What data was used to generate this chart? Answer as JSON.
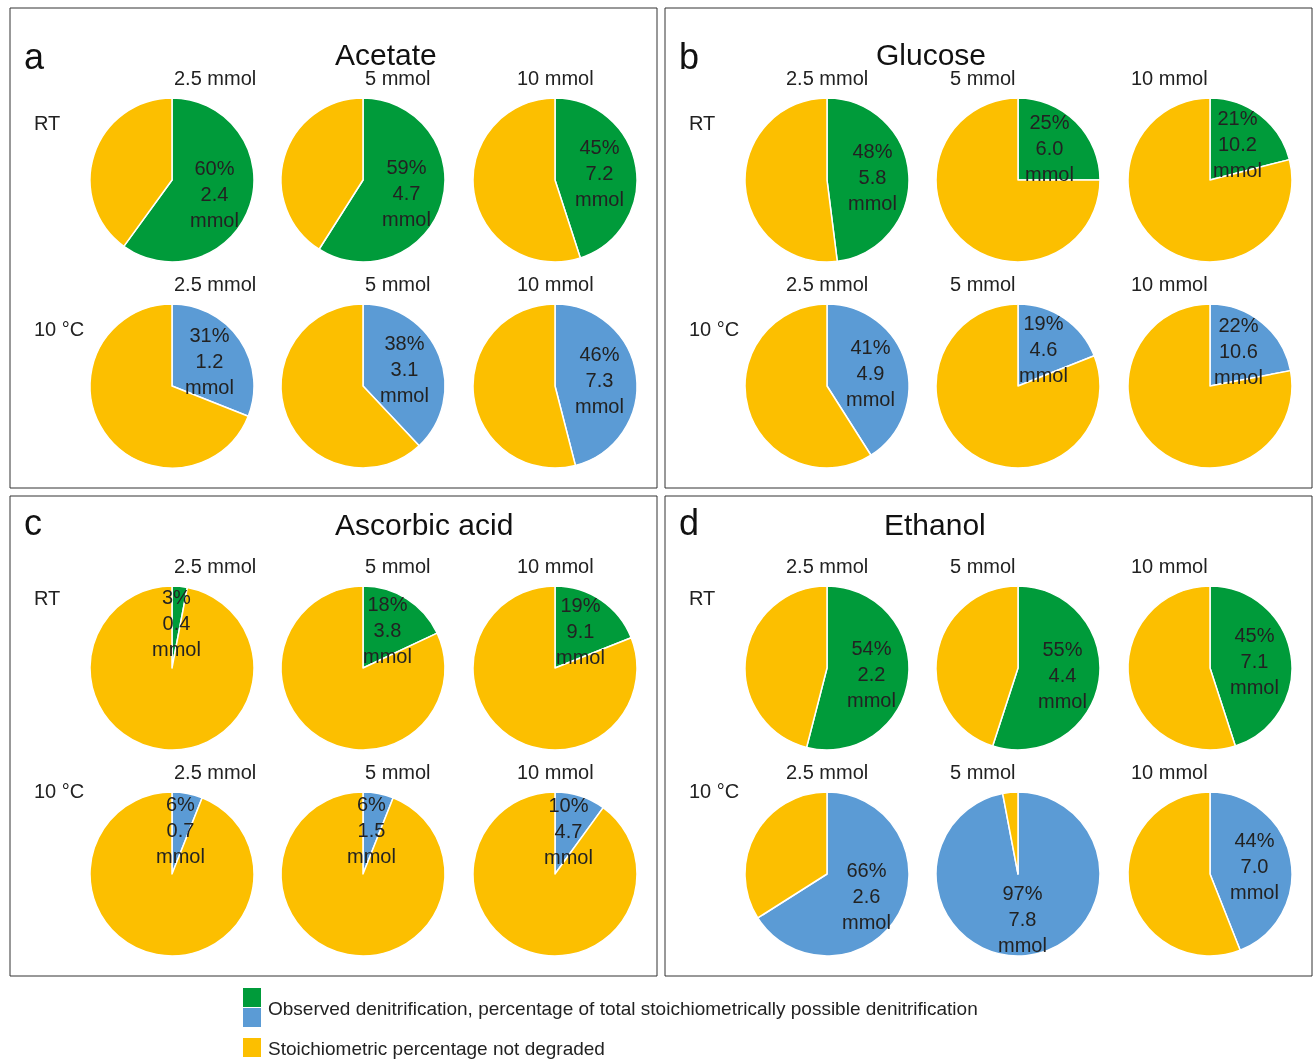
{
  "chart_data": [
    {
      "type": "pie",
      "title": "2.5 mmol",
      "annotations": [
        "a",
        "Acetate",
        "RT"
      ],
      "legend": "bottom",
      "categories": [
        "Observed denitrification, percentage of total stoichiometrically possible denitrification",
        "Stoichiometric percentage not degraded"
      ],
      "values": [
        60,
        40
      ],
      "colors": [
        "#009b3a",
        "#fcbf00"
      ],
      "value_labels": [
        "60%\n2.4\nmmol",
        null
      ]
    },
    {
      "type": "pie",
      "title": "5 mmol",
      "categories": [
        null,
        null
      ],
      "values": [
        59,
        41
      ],
      "colors": [
        "#009b3a",
        "#fcbf00"
      ],
      "value_labels": [
        "59%\n4.7\nmmol",
        null
      ]
    },
    {
      "type": "pie",
      "title": "10 mmol",
      "categories": [
        null,
        null
      ],
      "values": [
        45,
        55
      ],
      "colors": [
        "#009b3a",
        "#fcbf00"
      ],
      "value_labels": [
        "45%\n7.2\nmmol",
        null
      ]
    },
    {
      "type": "pie",
      "title": "2.5 mmol",
      "annotations": [
        "10 °C"
      ],
      "categories": [
        null,
        null
      ],
      "values": [
        31,
        69
      ],
      "colors": [
        "#5b9bd5",
        "#fcbf00"
      ],
      "value_labels": [
        "31%\n1.2\nmmol",
        null
      ]
    },
    {
      "type": "pie",
      "title": "5 mmol",
      "categories": [
        null,
        null
      ],
      "values": [
        38,
        62
      ],
      "colors": [
        "#5b9bd5",
        "#fcbf00"
      ],
      "value_labels": [
        "38%\n3.1\nmmol",
        null
      ]
    },
    {
      "type": "pie",
      "title": "10 mmol",
      "categories": [
        null,
        null
      ],
      "values": [
        46,
        54
      ],
      "colors": [
        "#5b9bd5",
        "#fcbf00"
      ],
      "value_labels": [
        "46%\n7.3\nmmol",
        null
      ]
    },
    {
      "type": "pie",
      "title": "2.5 mmol",
      "annotations": [
        "b",
        "Glucose",
        "RT"
      ],
      "categories": [
        null,
        null
      ],
      "values": [
        48,
        52
      ],
      "colors": [
        "#009b3a",
        "#fcbf00"
      ],
      "value_labels": [
        "48%\n5.8\nmmol",
        null
      ]
    },
    {
      "type": "pie",
      "title": "5 mmol",
      "categories": [
        null,
        null
      ],
      "values": [
        25,
        75
      ],
      "colors": [
        "#009b3a",
        "#fcbf00"
      ],
      "value_labels": [
        "25%\n6.0\nmmol",
        null
      ]
    },
    {
      "type": "pie",
      "title": "10 mmol",
      "categories": [
        null,
        null
      ],
      "values": [
        21,
        79
      ],
      "colors": [
        "#009b3a",
        "#fcbf00"
      ],
      "value_labels": [
        "21%\n10.2\nmmol",
        null
      ]
    },
    {
      "type": "pie",
      "title": "2.5 mmol",
      "annotations": [
        "10 °C"
      ],
      "categories": [
        null,
        null
      ],
      "values": [
        41,
        59
      ],
      "colors": [
        "#5b9bd5",
        "#fcbf00"
      ],
      "value_labels": [
        "41%\n4.9\nmmol",
        null
      ]
    },
    {
      "type": "pie",
      "title": "5 mmol",
      "categories": [
        null,
        null
      ],
      "values": [
        19,
        81
      ],
      "colors": [
        "#5b9bd5",
        "#fcbf00"
      ],
      "value_labels": [
        "19%\n4.6\nmmol",
        null
      ]
    },
    {
      "type": "pie",
      "title": "10 mmol",
      "categories": [
        null,
        null
      ],
      "values": [
        22,
        78
      ],
      "colors": [
        "#5b9bd5",
        "#fcbf00"
      ],
      "value_labels": [
        "22%\n10.6\nmmol",
        null
      ]
    },
    {
      "type": "pie",
      "title": "2.5 mmol",
      "annotations": [
        "c",
        "Ascorbic acid",
        "RT"
      ],
      "categories": [
        null,
        null
      ],
      "values": [
        3,
        97
      ],
      "colors": [
        "#009b3a",
        "#fcbf00"
      ],
      "value_labels": [
        "3%\n0.4\nmmol",
        null
      ]
    },
    {
      "type": "pie",
      "title": "5 mmol",
      "categories": [
        null,
        null
      ],
      "values": [
        18,
        82
      ],
      "colors": [
        "#009b3a",
        "#fcbf00"
      ],
      "value_labels": [
        "18%\n3.8\nmmol",
        null
      ]
    },
    {
      "type": "pie",
      "title": "10 mmol",
      "categories": [
        null,
        null
      ],
      "values": [
        19,
        81
      ],
      "colors": [
        "#009b3a",
        "#fcbf00"
      ],
      "value_labels": [
        "19%\n9.1\nmmol",
        null
      ]
    },
    {
      "type": "pie",
      "title": "2.5 mmol",
      "annotations": [
        "10 °C"
      ],
      "categories": [
        null,
        null
      ],
      "values": [
        6,
        94
      ],
      "colors": [
        "#5b9bd5",
        "#fcbf00"
      ],
      "value_labels": [
        "6%\n0.7\nmmol",
        null
      ]
    },
    {
      "type": "pie",
      "title": "5 mmol",
      "categories": [
        null,
        null
      ],
      "values": [
        6,
        94
      ],
      "colors": [
        "#5b9bd5",
        "#fcbf00"
      ],
      "value_labels": [
        "6%\n1.5\nmmol",
        null
      ]
    },
    {
      "type": "pie",
      "title": "10 mmol",
      "categories": [
        null,
        null
      ],
      "values": [
        10,
        90
      ],
      "colors": [
        "#5b9bd5",
        "#fcbf00"
      ],
      "value_labels": [
        "10%\n4.7\nmmol",
        null
      ]
    },
    {
      "type": "pie",
      "title": "2.5 mmol",
      "annotations": [
        "d",
        "Ethanol",
        "RT"
      ],
      "categories": [
        null,
        null
      ],
      "values": [
        54,
        46
      ],
      "colors": [
        "#009b3a",
        "#fcbf00"
      ],
      "value_labels": [
        "54%\n2.2\nmmol",
        null
      ]
    },
    {
      "type": "pie",
      "title": "5 mmol",
      "categories": [
        null,
        null
      ],
      "values": [
        55,
        45
      ],
      "colors": [
        "#009b3a",
        "#fcbf00"
      ],
      "value_labels": [
        "55%\n4.4\nmmol",
        null
      ]
    },
    {
      "type": "pie",
      "title": "10 mmol",
      "categories": [
        null,
        null
      ],
      "values": [
        45,
        55
      ],
      "colors": [
        "#009b3a",
        "#fcbf00"
      ],
      "value_labels": [
        "45%\n7.1\nmmol",
        null
      ]
    },
    {
      "type": "pie",
      "title": "2.5 mmol",
      "annotations": [
        "10 °C"
      ],
      "categories": [
        null,
        null
      ],
      "values": [
        66,
        34
      ],
      "colors": [
        "#5b9bd5",
        "#fcbf00"
      ],
      "value_labels": [
        "66%\n2.6\nmmol",
        null
      ]
    },
    {
      "type": "pie",
      "title": "5 mmol",
      "categories": [
        null,
        null
      ],
      "values": [
        97,
        3
      ],
      "colors": [
        "#5b9bd5",
        "#fcbf00"
      ],
      "value_labels": [
        "97%\n7.8\nmmol",
        null
      ]
    },
    {
      "type": "pie",
      "title": "10 mmol",
      "categories": [
        null,
        null
      ],
      "values": [
        44,
        56
      ],
      "colors": [
        "#5b9bd5",
        "#fcbf00"
      ],
      "value_labels": [
        "44%\n7.0\nmmol",
        null
      ]
    }
  ]
}
